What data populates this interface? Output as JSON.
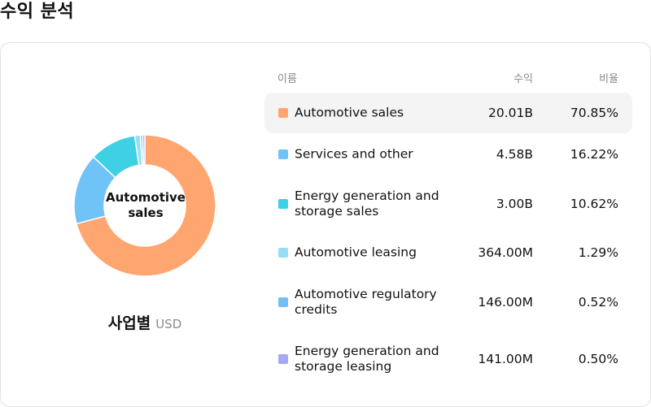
{
  "page_title": "수익 분석",
  "headers": {
    "name": "이름",
    "revenue": "수익",
    "ratio": "비율"
  },
  "center_label": "Automotive sales",
  "caption": {
    "title": "사업별",
    "unit": "USD"
  },
  "rows": [
    {
      "name": "Automotive sales",
      "revenue": "20.01B",
      "ratio": "70.85%",
      "color": "#FFA570"
    },
    {
      "name": "Services and other",
      "revenue": "4.58B",
      "ratio": "16.22%",
      "color": "#6FC3F7"
    },
    {
      "name": "Energy generation and storage sales",
      "revenue": "3.00B",
      "ratio": "10.62%",
      "color": "#3FD0E6"
    },
    {
      "name": "Automotive leasing",
      "revenue": "364.00M",
      "ratio": "1.29%",
      "color": "#97DDF3"
    },
    {
      "name": "Automotive regulatory credits",
      "revenue": "146.00M",
      "ratio": "0.52%",
      "color": "#74BFF4"
    },
    {
      "name": "Energy generation and storage leasing",
      "revenue": "141.00M",
      "ratio": "0.50%",
      "color": "#A8A6F6"
    }
  ],
  "chart_data": {
    "type": "pie",
    "categories": [
      "Automotive sales",
      "Services and other",
      "Energy generation and storage sales",
      "Automotive leasing",
      "Automotive regulatory credits",
      "Energy generation and storage leasing"
    ],
    "values": [
      70.85,
      16.22,
      10.62,
      1.29,
      0.52,
      0.5
    ],
    "colors": [
      "#FFA570",
      "#6FC3F7",
      "#3FD0E6",
      "#97DDF3",
      "#74BFF4",
      "#A8A6F6"
    ],
    "title": "",
    "xlabel": "",
    "ylabel": ""
  }
}
